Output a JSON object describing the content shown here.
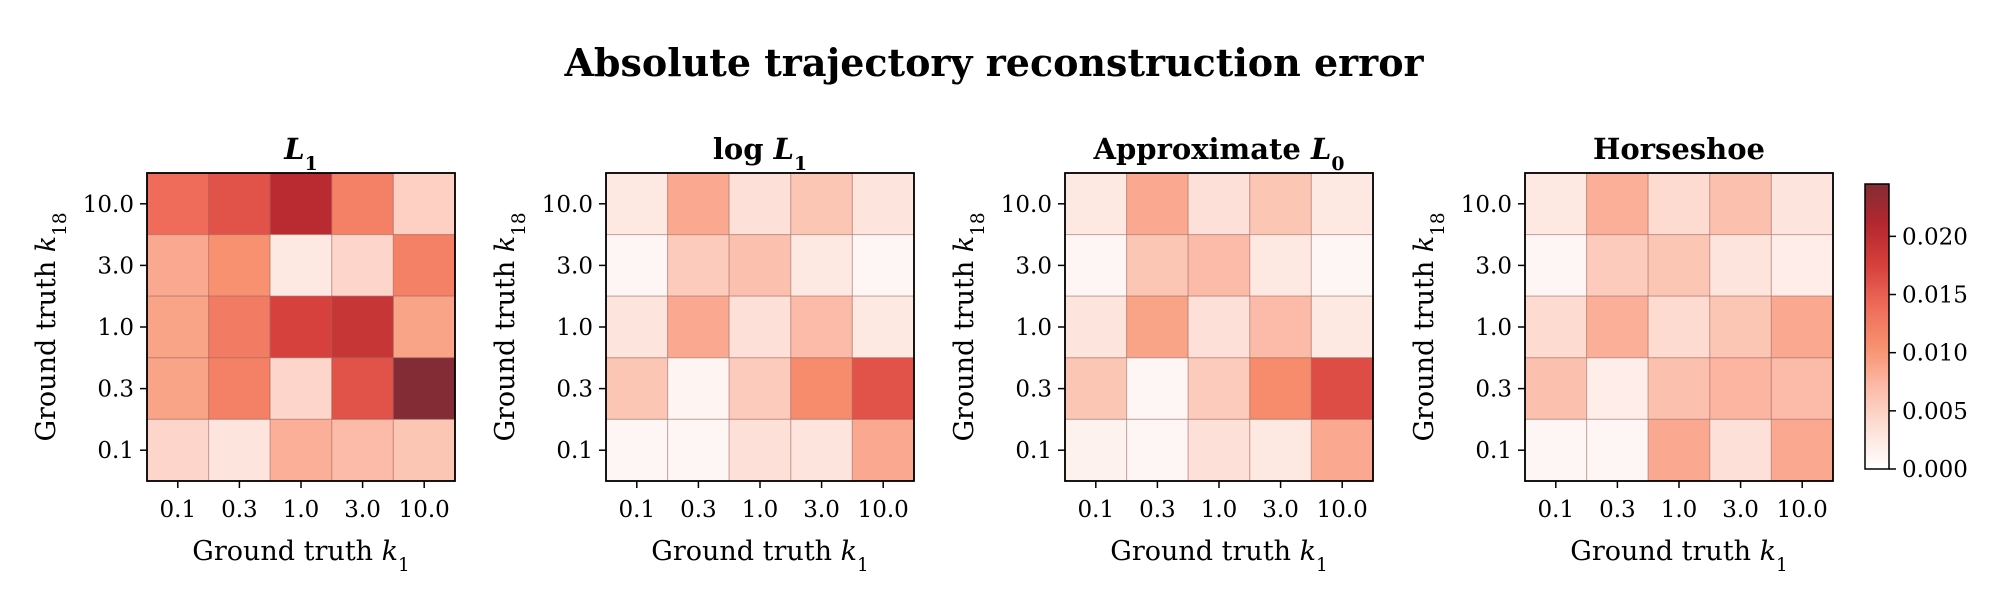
{
  "figure": {
    "title": "Absolute trajectory reconstruction error"
  },
  "colorbar": {
    "colors": [
      "#ffffff",
      "#fde0d7",
      "#fcbba8",
      "#f7916f",
      "#ef6b5a",
      "#d6403d",
      "#b4282f",
      "#832c35"
    ],
    "ticks": [
      "0.000",
      "0.005",
      "0.010",
      "0.015",
      "0.020"
    ],
    "tick_values": [
      0,
      0.005,
      0.01,
      0.015,
      0.02
    ]
  },
  "chart_data": [
    {
      "type": "heatmap",
      "title": "L",
      "title_subscript": "1",
      "title_prefix": "",
      "xlabel": "Ground truth k",
      "xlabel_subscript": "1",
      "ylabel": "Ground truth k",
      "ylabel_subscript": "18",
      "x_categories": [
        "0.1",
        "0.3",
        "1.0",
        "3.0",
        "10.0"
      ],
      "y_categories": [
        "10.0",
        "3.0",
        "1.0",
        "0.3",
        "0.1"
      ],
      "values": [
        [
          0.014,
          0.016,
          0.0205,
          0.012,
          0.005
        ],
        [
          0.0085,
          0.0105,
          0.0025,
          0.0045,
          0.012
        ],
        [
          0.009,
          0.0125,
          0.0175,
          0.019,
          0.009
        ],
        [
          0.009,
          0.012,
          0.0045,
          0.016,
          0.0245
        ],
        [
          0.0045,
          0.003,
          0.008,
          0.007,
          0.006
        ]
      ],
      "vmin": 0,
      "vmax": 0.0245
    },
    {
      "type": "heatmap",
      "title": "L",
      "title_subscript": "1",
      "title_prefix": "log ",
      "xlabel": "Ground truth k",
      "xlabel_subscript": "1",
      "ylabel": "Ground truth k",
      "ylabel_subscript": "18",
      "x_categories": [
        "0.1",
        "0.3",
        "1.0",
        "3.0",
        "10.0"
      ],
      "y_categories": [
        "10.0",
        "3.0",
        "1.0",
        "0.3",
        "0.1"
      ],
      "values": [
        [
          0.0025,
          0.0085,
          0.0035,
          0.006,
          0.003
        ],
        [
          0.001,
          0.0055,
          0.0065,
          0.0025,
          0.001
        ],
        [
          0.003,
          0.0085,
          0.0035,
          0.007,
          0.0025
        ],
        [
          0.006,
          0.0012,
          0.0055,
          0.011,
          0.016
        ],
        [
          0.001,
          0.001,
          0.0035,
          0.003,
          0.0085
        ]
      ],
      "vmin": 0,
      "vmax": 0.0245
    },
    {
      "type": "heatmap",
      "title": "Approximate L",
      "title_subscript": "0",
      "title_prefix": "",
      "xlabel": "Ground truth k",
      "xlabel_subscript": "1",
      "ylabel": "Ground truth k",
      "ylabel_subscript": "18",
      "x_categories": [
        "0.1",
        "0.3",
        "1.0",
        "3.0",
        "10.0"
      ],
      "y_categories": [
        "10.0",
        "3.0",
        "1.0",
        "0.3",
        "0.1"
      ],
      "values": [
        [
          0.0025,
          0.0085,
          0.0035,
          0.006,
          0.0025
        ],
        [
          0.001,
          0.006,
          0.007,
          0.0025,
          0.001
        ],
        [
          0.003,
          0.009,
          0.0035,
          0.007,
          0.0025
        ],
        [
          0.006,
          0.001,
          0.0055,
          0.011,
          0.0165
        ],
        [
          0.0015,
          0.001,
          0.0035,
          0.0025,
          0.0085
        ]
      ],
      "vmin": 0,
      "vmax": 0.0245
    },
    {
      "type": "heatmap",
      "title": "Horseshoe",
      "title_subscript": "",
      "title_prefix": "",
      "xlabel": "Ground truth k",
      "xlabel_subscript": "1",
      "ylabel": "Ground truth k",
      "ylabel_subscript": "18",
      "x_categories": [
        "0.1",
        "0.3",
        "1.0",
        "3.0",
        "10.0"
      ],
      "y_categories": [
        "10.0",
        "3.0",
        "1.0",
        "0.3",
        "0.1"
      ],
      "values": [
        [
          0.0025,
          0.008,
          0.004,
          0.0065,
          0.003
        ],
        [
          0.001,
          0.0055,
          0.006,
          0.003,
          0.002
        ],
        [
          0.004,
          0.008,
          0.004,
          0.006,
          0.0085
        ],
        [
          0.0065,
          0.002,
          0.0065,
          0.0075,
          0.007
        ],
        [
          0.001,
          0.001,
          0.0085,
          0.0035,
          0.0085
        ]
      ],
      "vmin": 0,
      "vmax": 0.0245
    }
  ]
}
